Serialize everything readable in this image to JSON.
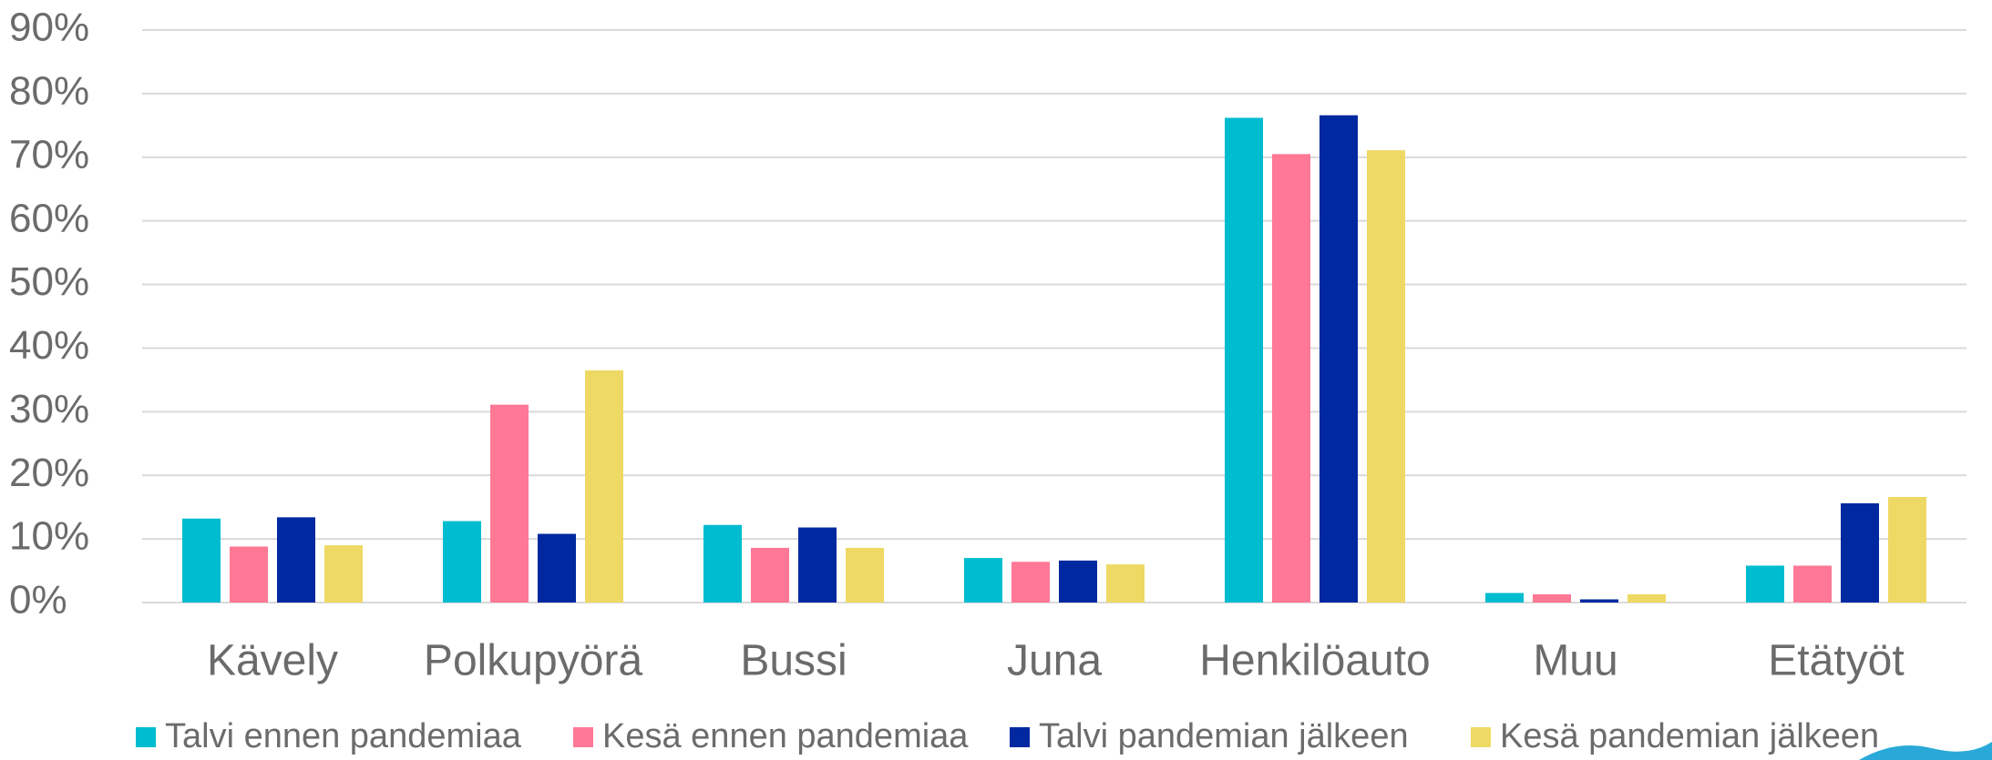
{
  "chart_data": {
    "type": "bar",
    "categories": [
      "Kävely",
      "Polkupyörä",
      "Bussi",
      "Juna",
      "Henkilöauto",
      "Muu",
      "Etätyöt"
    ],
    "series": [
      {
        "name": "Talvi ennen pandemiaa",
        "color": "#00bcd0",
        "values": [
          13.2,
          12.8,
          12.2,
          7.0,
          76.2,
          1.5,
          5.8
        ]
      },
      {
        "name": "Kesä ennen pandemiaa",
        "color": "#ff7896",
        "values": [
          8.8,
          31.1,
          8.6,
          6.4,
          70.5,
          1.3,
          5.8
        ]
      },
      {
        "name": "Talvi pandemian jälkeen",
        "color": "#0028a0",
        "values": [
          13.4,
          10.8,
          11.8,
          6.6,
          76.6,
          0.5,
          15.6
        ]
      },
      {
        "name": "Kesä pandemian jälkeen",
        "color": "#eed964",
        "values": [
          9.0,
          36.5,
          8.6,
          6.0,
          71.1,
          1.3,
          16.6
        ]
      }
    ],
    "ylim": [
      0,
      90
    ],
    "yticks": [
      {
        "value": 0,
        "label": "0%"
      },
      {
        "value": 10,
        "label": "10%"
      },
      {
        "value": 20,
        "label": "20%"
      },
      {
        "value": 30,
        "label": "30%"
      },
      {
        "value": 40,
        "label": "40%"
      },
      {
        "value": 50,
        "label": "50%"
      },
      {
        "value": 60,
        "label": "60%"
      },
      {
        "value": 70,
        "label": "70%"
      },
      {
        "value": 80,
        "label": "80%"
      },
      {
        "value": 90,
        "label": "90%"
      }
    ],
    "grid": true,
    "legend": "bottom"
  }
}
